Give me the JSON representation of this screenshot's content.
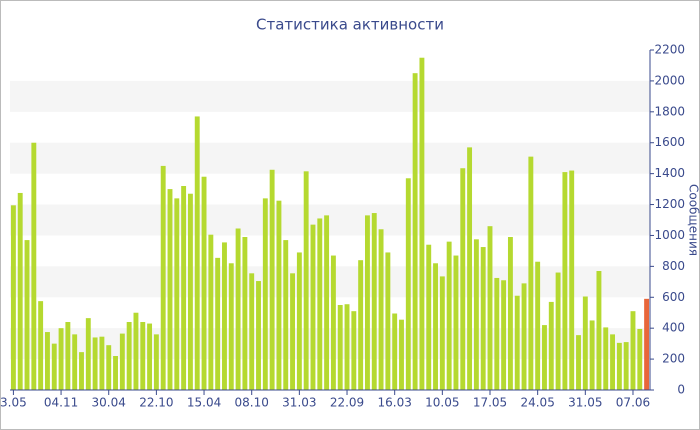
{
  "chart_data": {
    "type": "bar",
    "title": "Статистика активности",
    "y_label": "Сообщения",
    "categories": [
      "3.05",
      null,
      null,
      null,
      null,
      null,
      null,
      "04.11",
      null,
      null,
      null,
      null,
      null,
      null,
      "30.04",
      null,
      null,
      null,
      null,
      null,
      null,
      "22.10",
      null,
      null,
      null,
      null,
      null,
      null,
      "15.04",
      null,
      null,
      null,
      null,
      null,
      null,
      "08.10",
      null,
      null,
      null,
      null,
      null,
      null,
      "31.03",
      null,
      null,
      null,
      null,
      null,
      null,
      "22.09",
      null,
      null,
      null,
      null,
      null,
      null,
      "16.03",
      null,
      null,
      null,
      null,
      null,
      null,
      "10.05",
      null,
      null,
      null,
      null,
      null,
      null,
      "17.05",
      null,
      null,
      null,
      null,
      null,
      null,
      "24.05",
      null,
      null,
      null,
      null,
      null,
      null,
      "31.05",
      null,
      null,
      null,
      null,
      null,
      null,
      "07.06",
      null,
      null
    ],
    "values": [
      1195,
      1275,
      970,
      1600,
      575,
      375,
      300,
      400,
      440,
      360,
      245,
      465,
      340,
      345,
      290,
      220,
      365,
      440,
      500,
      440,
      430,
      360,
      1450,
      1300,
      1240,
      1320,
      1270,
      1770,
      1380,
      1005,
      855,
      955,
      820,
      1045,
      990,
      755,
      705,
      1240,
      1425,
      1225,
      970,
      755,
      890,
      1415,
      1070,
      1110,
      1130,
      870,
      550,
      555,
      510,
      840,
      1130,
      1145,
      1040,
      890,
      495,
      455,
      1370,
      2050,
      2150,
      940,
      820,
      735,
      960,
      870,
      1435,
      1570,
      975,
      925,
      1060,
      725,
      710,
      990,
      610,
      690,
      1510,
      830,
      420,
      570,
      760,
      1410,
      1420,
      355,
      605,
      450,
      770,
      405,
      360,
      305,
      310,
      510,
      395,
      590
    ],
    "color": "#b5d930",
    "last_color": "#e8663a",
    "ylim": [
      0,
      2200
    ],
    "yticks": [
      0,
      200,
      400,
      600,
      800,
      1000,
      1200,
      1400,
      1600,
      1800,
      2000,
      2200
    ],
    "grid": "bands"
  }
}
